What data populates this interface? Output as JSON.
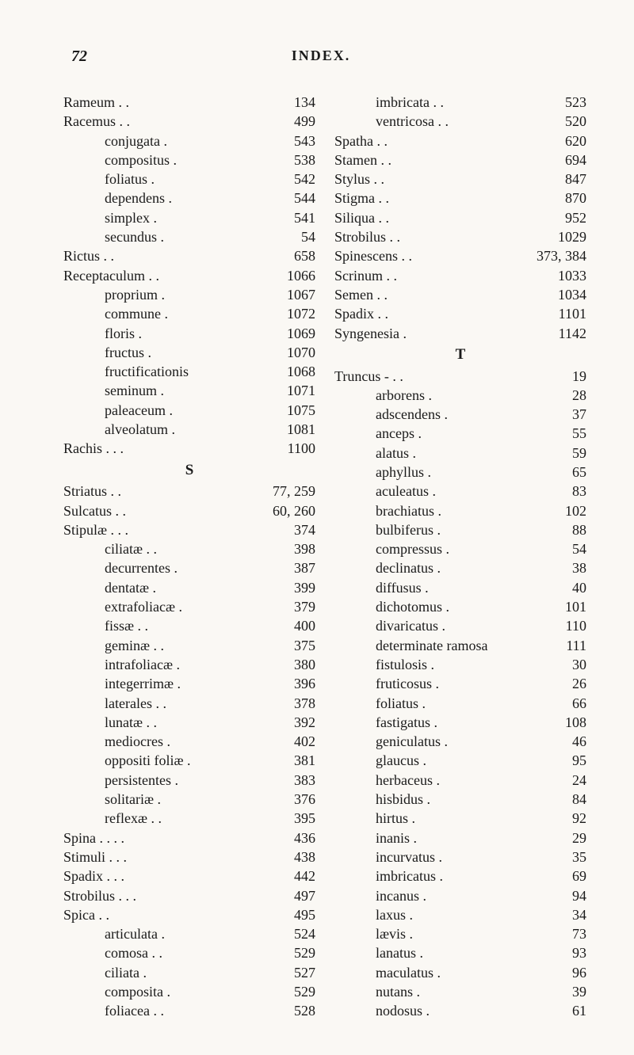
{
  "header": {
    "page_number": "72",
    "section_title": "INDEX."
  },
  "columns": {
    "left": [
      {
        "type": "entry",
        "indent": 0,
        "term": "Rameum   .   .",
        "page": "134"
      },
      {
        "type": "entry",
        "indent": 0,
        "term": "Racemus   .   .",
        "page": "499"
      },
      {
        "type": "entry",
        "indent": 1,
        "term": "conjugata   .",
        "page": "543"
      },
      {
        "type": "entry",
        "indent": 1,
        "term": "compositus  .",
        "page": "538"
      },
      {
        "type": "entry",
        "indent": 1,
        "term": "foliatus    .",
        "page": "542"
      },
      {
        "type": "entry",
        "indent": 1,
        "term": "dependens   .",
        "page": "544"
      },
      {
        "type": "entry",
        "indent": 1,
        "term": "simplex     .",
        "page": "541"
      },
      {
        "type": "entry",
        "indent": 1,
        "term": "secundus    .",
        "page": "54"
      },
      {
        "type": "entry",
        "indent": 0,
        "term": "Rictus    .   .",
        "page": "658"
      },
      {
        "type": "entry",
        "indent": 0,
        "term": "Receptaculum  .   .",
        "page": "1066"
      },
      {
        "type": "entry",
        "indent": 1,
        "term": "proprium  .",
        "page": "1067"
      },
      {
        "type": "entry",
        "indent": 1,
        "term": "commune   .",
        "page": "1072"
      },
      {
        "type": "entry",
        "indent": 1,
        "term": "floris    .",
        "page": "1069"
      },
      {
        "type": "entry",
        "indent": 1,
        "term": "fructus   .",
        "page": "1070"
      },
      {
        "type": "entry",
        "indent": 1,
        "term": "fructificationis",
        "page": "1068"
      },
      {
        "type": "entry",
        "indent": 1,
        "term": "seminum   .",
        "page": "1071"
      },
      {
        "type": "entry",
        "indent": 1,
        "term": "paleaceum .",
        "page": "1075"
      },
      {
        "type": "entry",
        "indent": 1,
        "term": "alveolatum .",
        "page": "1081"
      },
      {
        "type": "entry",
        "indent": 0,
        "term": "Rachis    .   .   .",
        "page": "1100"
      },
      {
        "type": "section",
        "letter": "S"
      },
      {
        "type": "entry",
        "indent": 0,
        "term": "Striatus   .   .",
        "page": "77, 259"
      },
      {
        "type": "entry",
        "indent": 0,
        "term": "Sulcatus   .   .",
        "page": "60, 260"
      },
      {
        "type": "entry",
        "indent": 0,
        "term": "Stipulæ   .   .   .",
        "page": "374"
      },
      {
        "type": "entry",
        "indent": 1,
        "term": "ciliatæ    .   .",
        "page": "398"
      },
      {
        "type": "entry",
        "indent": 1,
        "term": "decurrentes   .",
        "page": "387"
      },
      {
        "type": "entry",
        "indent": 1,
        "term": "dentatæ   .",
        "page": "399"
      },
      {
        "type": "entry",
        "indent": 1,
        "term": "extrafoliacæ   .",
        "page": "379"
      },
      {
        "type": "entry",
        "indent": 1,
        "term": "fissæ     .   .",
        "page": "400"
      },
      {
        "type": "entry",
        "indent": 1,
        "term": "geminæ   .   .",
        "page": "375"
      },
      {
        "type": "entry",
        "indent": 1,
        "term": "intrafoliacæ   .",
        "page": "380"
      },
      {
        "type": "entry",
        "indent": 1,
        "term": "integerrimæ   .",
        "page": "396"
      },
      {
        "type": "entry",
        "indent": 1,
        "term": "laterales  .   .",
        "page": "378"
      },
      {
        "type": "entry",
        "indent": 1,
        "term": "lunatæ    .   .",
        "page": "392"
      },
      {
        "type": "entry",
        "indent": 1,
        "term": "mediocres   .",
        "page": "402"
      },
      {
        "type": "entry",
        "indent": 1,
        "term": "oppositi foliæ   .",
        "page": "381"
      },
      {
        "type": "entry",
        "indent": 1,
        "term": "persistentes   .",
        "page": "383"
      },
      {
        "type": "entry",
        "indent": 1,
        "term": "solitariæ    .",
        "page": "376"
      },
      {
        "type": "entry",
        "indent": 1,
        "term": "reflexæ   .   .",
        "page": "395"
      },
      {
        "type": "entry",
        "indent": 0,
        "term": "Spina  .   .   .   .",
        "page": "436"
      },
      {
        "type": "entry",
        "indent": 0,
        "term": "Stimuli   .   .   .",
        "page": "438"
      },
      {
        "type": "entry",
        "indent": 0,
        "term": "Spadix    .   .   .",
        "page": "442"
      },
      {
        "type": "entry",
        "indent": 0,
        "term": "Strobilus  .   .   .",
        "page": "497"
      },
      {
        "type": "entry",
        "indent": 0,
        "term": "Spica     .   .",
        "page": "495"
      },
      {
        "type": "entry",
        "indent": 1,
        "term": "articulata   .",
        "page": "524"
      },
      {
        "type": "entry",
        "indent": 1,
        "term": "comosa   .   .",
        "page": "529"
      },
      {
        "type": "entry",
        "indent": 1,
        "term": "ciliata   .",
        "page": "527"
      },
      {
        "type": "entry",
        "indent": 1,
        "term": "composita   .",
        "page": "529"
      },
      {
        "type": "entry",
        "indent": 1,
        "term": "foliacea   .   .",
        "page": "528"
      }
    ],
    "right": [
      {
        "type": "entry",
        "indent": 1,
        "term": "imbricata   .   .",
        "page": "523"
      },
      {
        "type": "entry",
        "indent": 1,
        "term": "ventricosa  .   .",
        "page": "520"
      },
      {
        "type": "entry",
        "indent": 0,
        "term": "Spatha    .   .",
        "page": "620"
      },
      {
        "type": "entry",
        "indent": 0,
        "term": "Stamen    .   .",
        "page": "694"
      },
      {
        "type": "entry",
        "indent": 0,
        "term": "Stylus    .   .",
        "page": "847"
      },
      {
        "type": "entry",
        "indent": 0,
        "term": "Stigma    .   .",
        "page": "870"
      },
      {
        "type": "entry",
        "indent": 0,
        "term": "Siliqua   .   .",
        "page": "952"
      },
      {
        "type": "entry",
        "indent": 0,
        "term": "Strobilus  .   .",
        "page": "1029"
      },
      {
        "type": "entry",
        "indent": 0,
        "term": "Spinescens  .   .",
        "page": "373, 384"
      },
      {
        "type": "entry",
        "indent": 0,
        "term": "Scrinum   .   .",
        "page": "1033"
      },
      {
        "type": "entry",
        "indent": 0,
        "term": "Semen     .   .",
        "page": "1034"
      },
      {
        "type": "entry",
        "indent": 0,
        "term": "Spadix    .   .",
        "page": "1101"
      },
      {
        "type": "entry",
        "indent": 0,
        "term": "Syngenesia    .",
        "page": "1142"
      },
      {
        "type": "section",
        "letter": "T"
      },
      {
        "type": "entry",
        "indent": 0,
        "term": "Truncus   -   .   .",
        "page": "19"
      },
      {
        "type": "entry",
        "indent": 1,
        "term": "arborens    .",
        "page": "28"
      },
      {
        "type": "entry",
        "indent": 1,
        "term": "adscendens   .",
        "page": "37"
      },
      {
        "type": "entry",
        "indent": 1,
        "term": "anceps    .",
        "page": "55"
      },
      {
        "type": "entry",
        "indent": 1,
        "term": "alatus    .",
        "page": "59"
      },
      {
        "type": "entry",
        "indent": 1,
        "term": "aphyllus   .",
        "page": "65"
      },
      {
        "type": "entry",
        "indent": 1,
        "term": "aculeatus   .",
        "page": "83"
      },
      {
        "type": "entry",
        "indent": 1,
        "term": "brachiatus   .",
        "page": "102"
      },
      {
        "type": "entry",
        "indent": 1,
        "term": "bulbiferus   .",
        "page": "88"
      },
      {
        "type": "entry",
        "indent": 1,
        "term": "compressus   .",
        "page": "54"
      },
      {
        "type": "entry",
        "indent": 1,
        "term": "declinatus   .",
        "page": "38"
      },
      {
        "type": "entry",
        "indent": 1,
        "term": "diffusus    .",
        "page": "40"
      },
      {
        "type": "entry",
        "indent": 1,
        "term": "dichotomus   .",
        "page": "101"
      },
      {
        "type": "entry",
        "indent": 1,
        "term": "divaricatus   .",
        "page": "110"
      },
      {
        "type": "entry",
        "indent": 1,
        "term": "determinate ramosa",
        "page": "111"
      },
      {
        "type": "entry",
        "indent": 1,
        "term": "fistulosis   .",
        "page": "30"
      },
      {
        "type": "entry",
        "indent": 1,
        "term": "fruticosus   .",
        "page": "26"
      },
      {
        "type": "entry",
        "indent": 1,
        "term": "foliatus    .",
        "page": "66"
      },
      {
        "type": "entry",
        "indent": 1,
        "term": "fastigatus   .",
        "page": "108"
      },
      {
        "type": "entry",
        "indent": 1,
        "term": "geniculatus   .",
        "page": "46"
      },
      {
        "type": "entry",
        "indent": 1,
        "term": "glaucus    .",
        "page": "95"
      },
      {
        "type": "entry",
        "indent": 1,
        "term": "herbaceus   .",
        "page": "24"
      },
      {
        "type": "entry",
        "indent": 1,
        "term": "hisbidus    .",
        "page": "84"
      },
      {
        "type": "entry",
        "indent": 1,
        "term": "hirtus     .",
        "page": "92"
      },
      {
        "type": "entry",
        "indent": 1,
        "term": "inanis     .",
        "page": "29"
      },
      {
        "type": "entry",
        "indent": 1,
        "term": "incurvatus   .",
        "page": "35"
      },
      {
        "type": "entry",
        "indent": 1,
        "term": "imbricatus   .",
        "page": "69"
      },
      {
        "type": "entry",
        "indent": 1,
        "term": "incanus    .",
        "page": "94"
      },
      {
        "type": "entry",
        "indent": 1,
        "term": "laxus      .",
        "page": "34"
      },
      {
        "type": "entry",
        "indent": 1,
        "term": "lævis      .",
        "page": "73"
      },
      {
        "type": "entry",
        "indent": 1,
        "term": "lanatus    .",
        "page": "93"
      },
      {
        "type": "entry",
        "indent": 1,
        "term": "maculatus   .",
        "page": "96"
      },
      {
        "type": "entry",
        "indent": 1,
        "term": "nutans     .",
        "page": "39"
      },
      {
        "type": "entry",
        "indent": 1,
        "term": "nodosus    .",
        "page": "61"
      }
    ]
  }
}
